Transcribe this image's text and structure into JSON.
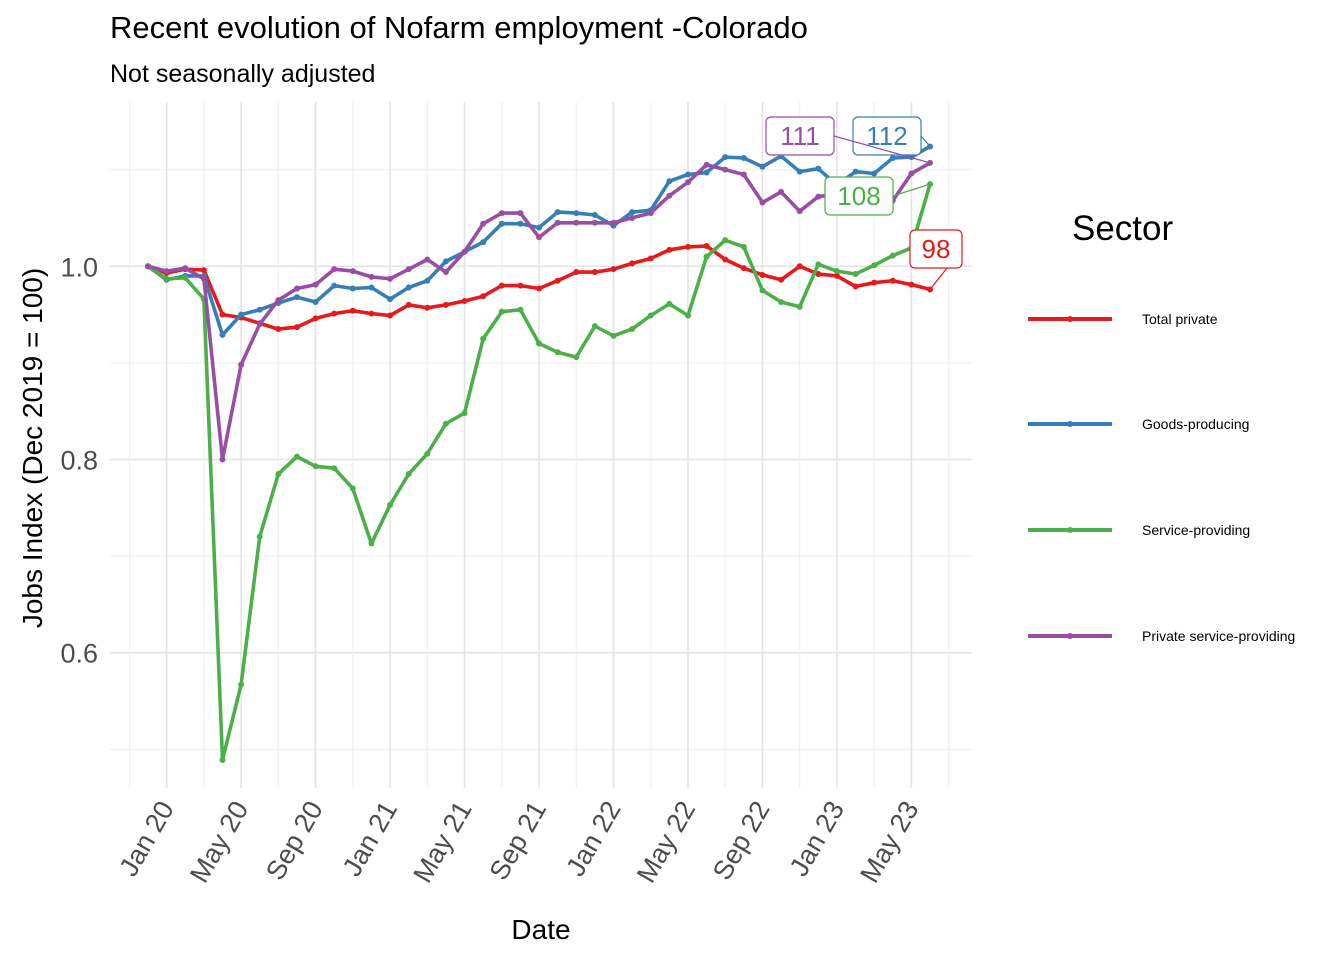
{
  "chart_data": {
    "type": "line",
    "title": "Recent evolution of Nofarm employment -Colorado",
    "subtitle": "Not seasonally adjusted",
    "xlabel": "Date",
    "ylabel": "Jobs Index (Dec 2019 = 100)",
    "x_ticks": [
      "Jan 20",
      "May 20",
      "Sep 20",
      "Jan 21",
      "May 21",
      "Sep 21",
      "Jan 22",
      "May 22",
      "Sep 22",
      "Jan 23",
      "May 23"
    ],
    "x_tick_month_index": [
      1,
      5,
      9,
      13,
      17,
      21,
      25,
      29,
      33,
      37,
      41
    ],
    "x_dates": [
      "Dec 2019",
      "Jan 2020",
      "Feb 2020",
      "Mar 2020",
      "Apr 2020",
      "May 2020",
      "Jun 2020",
      "Jul 2020",
      "Aug 2020",
      "Sep 2020",
      "Oct 2020",
      "Nov 2020",
      "Dec 2020",
      "Jan 2021",
      "Feb 2021",
      "Mar 2021",
      "Apr 2021",
      "May 2021",
      "Jun 2021",
      "Jul 2021",
      "Aug 2021",
      "Sep 2021",
      "Oct 2021",
      "Nov 2021",
      "Dec 2021",
      "Jan 2022",
      "Feb 2022",
      "Mar 2022",
      "Apr 2022",
      "May 2022",
      "Jun 2022",
      "Jul 2022",
      "Aug 2022",
      "Sep 2022",
      "Oct 2022",
      "Nov 2022",
      "Dec 2022",
      "Jan 2023",
      "Feb 2023",
      "Mar 2023",
      "Apr 2023",
      "May 2023",
      "Jun 2023"
    ],
    "y_ticks": [
      0.6,
      0.8,
      1.0
    ],
    "y_tick_labels": [
      "0.6",
      "0.8",
      "1.0"
    ],
    "ylim": [
      0.46,
      1.17
    ],
    "grid": true,
    "legend": {
      "title": "Sector",
      "placement": "right"
    },
    "series": [
      {
        "name": "Total private",
        "color": "#E41A1C",
        "end_label": "98",
        "values": [
          1.0,
          0.993,
          0.997,
          0.996,
          0.95,
          0.947,
          0.941,
          0.935,
          0.937,
          0.946,
          0.951,
          0.954,
          0.951,
          0.949,
          0.96,
          0.957,
          0.96,
          0.964,
          0.969,
          0.98,
          0.98,
          0.977,
          0.985,
          0.994,
          0.994,
          0.997,
          1.003,
          1.008,
          1.017,
          1.02,
          1.021,
          1.007,
          0.998,
          0.991,
          0.986,
          1.0,
          0.992,
          0.99,
          0.979,
          0.983,
          0.985,
          0.981,
          0.976
        ]
      },
      {
        "name": "Goods-producing",
        "color": "#377EB8",
        "end_label": "112",
        "values": [
          1.0,
          0.986,
          0.99,
          0.99,
          0.929,
          0.95,
          0.955,
          0.962,
          0.968,
          0.963,
          0.98,
          0.977,
          0.978,
          0.966,
          0.978,
          0.985,
          1.005,
          1.015,
          1.025,
          1.044,
          1.044,
          1.04,
          1.056,
          1.055,
          1.053,
          1.042,
          1.056,
          1.058,
          1.088,
          1.095,
          1.097,
          1.113,
          1.112,
          1.103,
          1.114,
          1.098,
          1.101,
          1.084,
          1.098,
          1.096,
          1.112,
          1.113,
          1.124
        ]
      },
      {
        "name": "Service-providing",
        "color": "#4DAF4A",
        "end_label": "108",
        "values": [
          1.0,
          0.987,
          0.988,
          0.966,
          0.489,
          0.567,
          0.72,
          0.785,
          0.803,
          0.793,
          0.791,
          0.77,
          0.713,
          0.753,
          0.785,
          0.806,
          0.837,
          0.848,
          0.925,
          0.953,
          0.955,
          0.92,
          0.911,
          0.906,
          0.938,
          0.928,
          0.935,
          0.949,
          0.961,
          0.949,
          1.01,
          1.027,
          1.02,
          0.975,
          0.963,
          0.958,
          1.002,
          0.995,
          0.992,
          1.001,
          1.011,
          1.019,
          1.085
        ]
      },
      {
        "name": "Private service-providing",
        "color": "#984EA3",
        "end_label": "111",
        "values": [
          1.0,
          0.995,
          0.998,
          0.987,
          0.8,
          0.898,
          0.94,
          0.965,
          0.977,
          0.981,
          0.997,
          0.995,
          0.989,
          0.987,
          0.997,
          1.007,
          0.994,
          1.015,
          1.044,
          1.055,
          1.055,
          1.03,
          1.045,
          1.045,
          1.045,
          1.045,
          1.05,
          1.055,
          1.073,
          1.087,
          1.105,
          1.1,
          1.095,
          1.066,
          1.077,
          1.057,
          1.072,
          1.075,
          1.07,
          1.085,
          1.068,
          1.096,
          1.107
        ]
      }
    ]
  }
}
